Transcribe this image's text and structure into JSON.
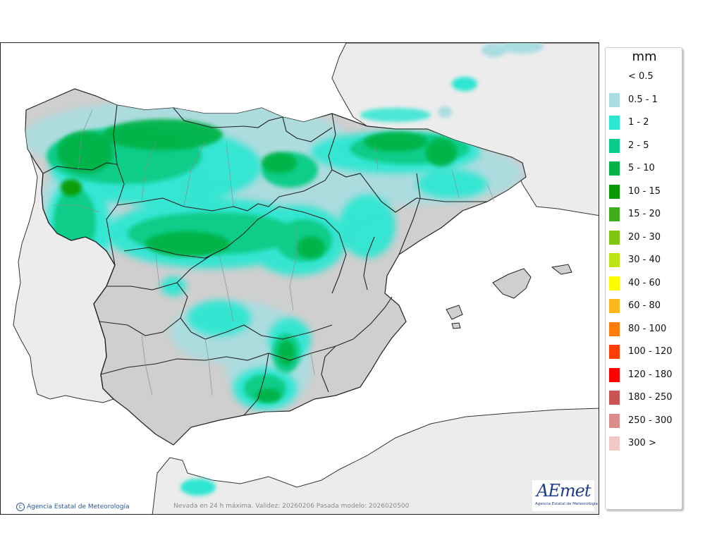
{
  "map": {
    "caption": "Nevada en 24 h máxima. Validez: 20260206 Pasada modelo: 2026020500",
    "attribution": "Agencia Estatal de Meteorología",
    "logo": {
      "text": "AEmet",
      "subtitle": "Agencia Estatal de Meteorología"
    },
    "colors": {
      "sea": "#ffffff",
      "foreign_land": "#ececec",
      "spain_land": "#cfcfcf",
      "borders": "#222222"
    }
  },
  "legend": {
    "unit": "mm",
    "items": [
      {
        "label": "< 0.5",
        "color": ""
      },
      {
        "label": "0.5 - 1",
        "color": "#a9dde0"
      },
      {
        "label": "1 - 2",
        "color": "#2de6d2"
      },
      {
        "label": "2 - 5",
        "color": "#0acd89"
      },
      {
        "label": "5 - 10",
        "color": "#02b347"
      },
      {
        "label": "10 - 15",
        "color": "#079a06"
      },
      {
        "label": "15 - 20",
        "color": "#3fae1a"
      },
      {
        "label": "20 - 30",
        "color": "#7ec70f"
      },
      {
        "label": "30 - 40",
        "color": "#bce314"
      },
      {
        "label": "40 - 60",
        "color": "#fdfd00"
      },
      {
        "label": "60 - 80",
        "color": "#fdb61c"
      },
      {
        "label": "80 - 100",
        "color": "#fe7d0b"
      },
      {
        "label": "100 - 120",
        "color": "#fe3d04"
      },
      {
        "label": "120 - 180",
        "color": "#fe0000"
      },
      {
        "label": "180 - 250",
        "color": "#c9534e"
      },
      {
        "label": "250 - 300",
        "color": "#db8b89"
      },
      {
        "label": "300 >",
        "color": "#f0c8c6"
      }
    ]
  }
}
